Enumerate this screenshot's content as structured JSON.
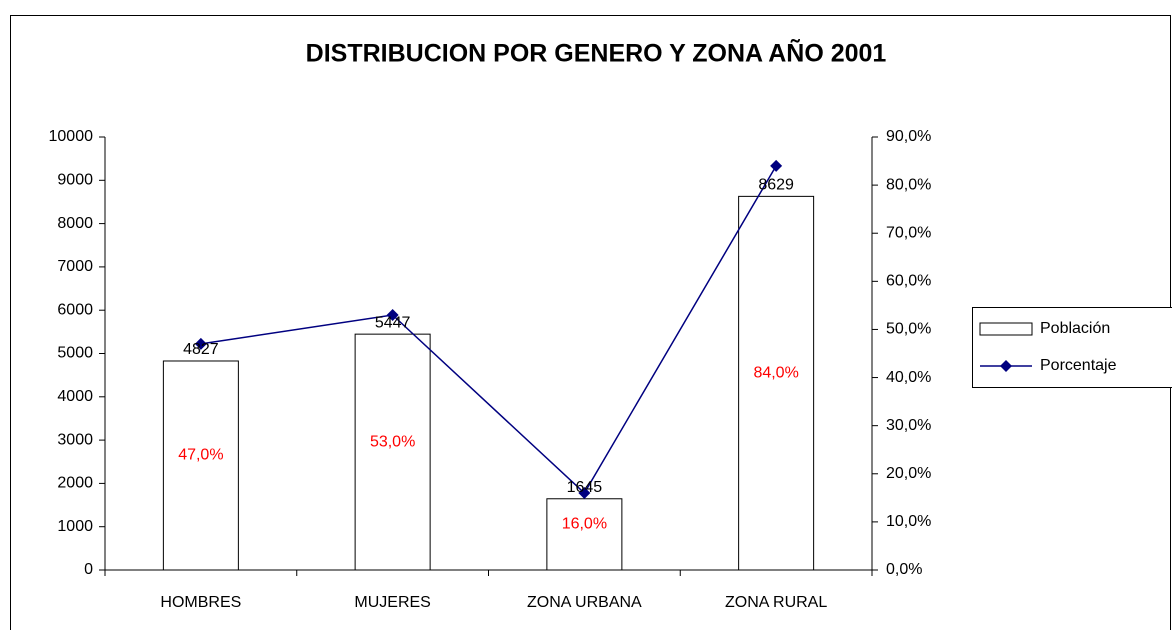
{
  "chart_data": {
    "type": "bar_line",
    "title": "DISTRIBUCION POR GENERO Y ZONA AÑO 2001",
    "categories": [
      "HOMBRES",
      "MUJERES",
      "ZONA URBANA",
      "ZONA RURAL"
    ],
    "series": [
      {
        "name": "Población",
        "type": "bar",
        "color": "#ffffff",
        "values": [
          4827,
          5447,
          1645,
          8629
        ]
      },
      {
        "name": "Porcentaje",
        "type": "line",
        "axis": "y2",
        "color": "#000080",
        "values": [
          47,
          53,
          16,
          84
        ],
        "value_labels": [
          "47,0%",
          "53,0%",
          "16,0%",
          "84,0%"
        ],
        "label_color": "#ff0000"
      }
    ],
    "ylim": [
      0,
      10000
    ],
    "yticks": [
      0,
      1000,
      2000,
      3000,
      4000,
      5000,
      6000,
      7000,
      8000,
      9000,
      10000
    ],
    "y2lim": [
      0,
      90
    ],
    "y2ticks": [
      {
        "value": 0,
        "label": "0,0%"
      },
      {
        "value": 10,
        "label": "10,0%"
      },
      {
        "value": 20,
        "label": "20,0%"
      },
      {
        "value": 30,
        "label": "30,0%"
      },
      {
        "value": 40,
        "label": "40,0%"
      },
      {
        "value": 50,
        "label": "50,0%"
      },
      {
        "value": 60,
        "label": "60,0%"
      },
      {
        "value": 70,
        "label": "70,0%"
      },
      {
        "value": 80,
        "label": "80,0%"
      },
      {
        "value": 90,
        "label": "90,0%"
      }
    ],
    "legend": "right"
  }
}
